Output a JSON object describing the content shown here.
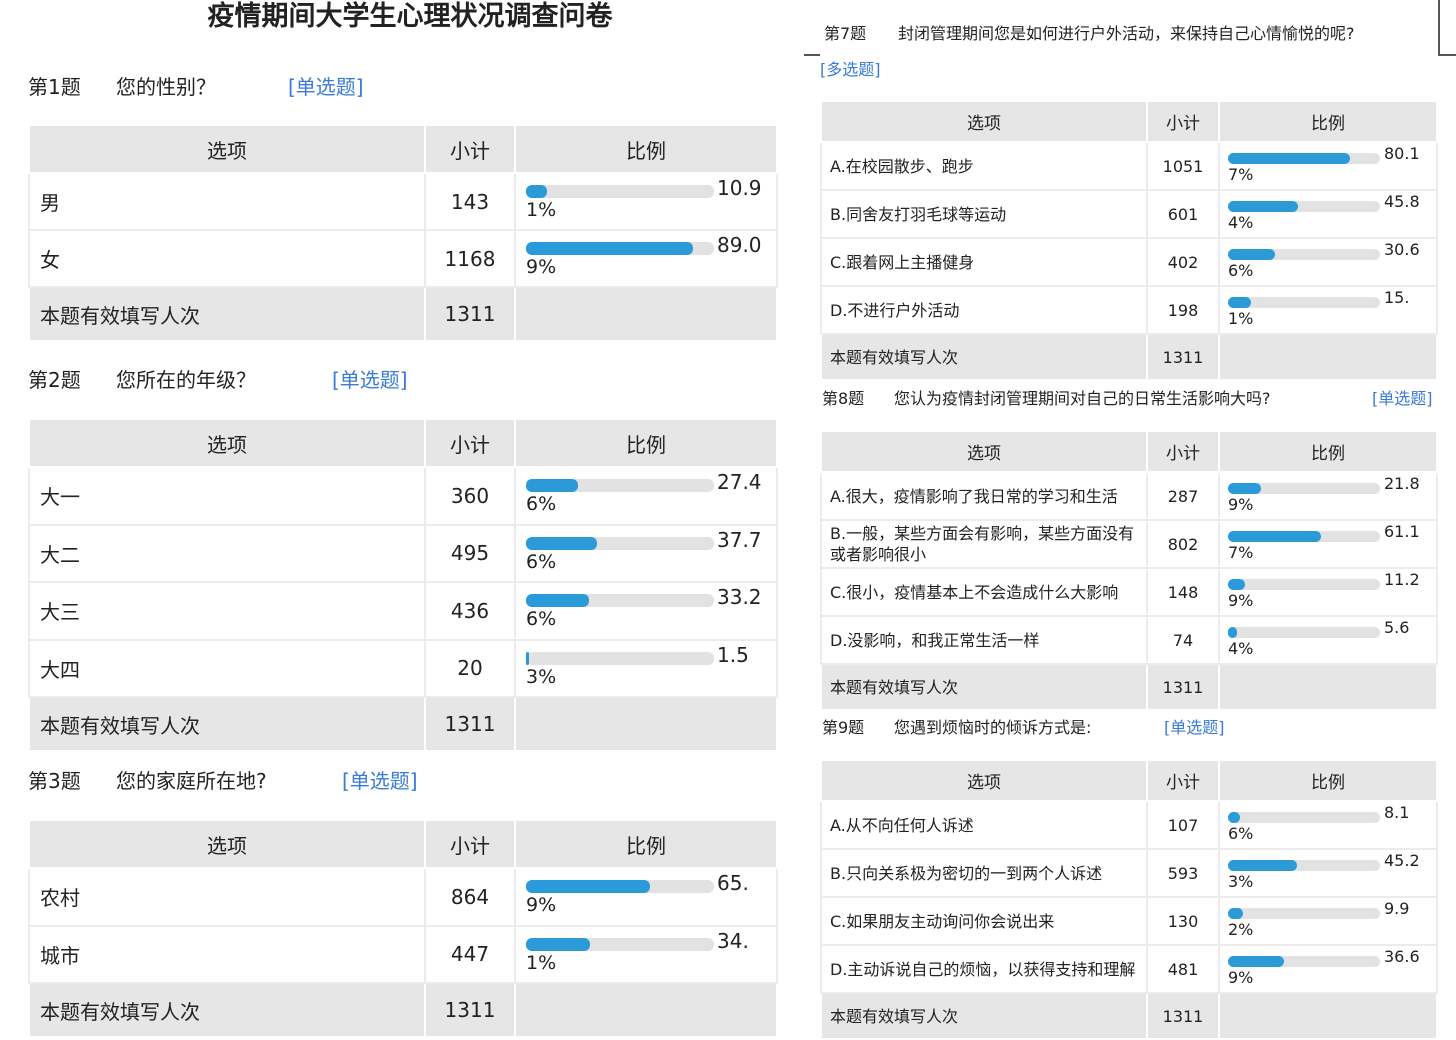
{
  "title": "疫情期间大学生心理状况调查问卷",
  "headers": {
    "option": "选项",
    "count": "小计",
    "ratio": "比例"
  },
  "total_label": "本题有效填写人次",
  "questions": [
    {
      "num": "第1题",
      "text": "您的性别？",
      "type": "[单选题]",
      "total": "1311",
      "rows": [
        {
          "option": "男",
          "count": "143",
          "pct_a": "10.9",
          "pct_b": "1%",
          "value": 10.91
        },
        {
          "option": "女",
          "count": "1168",
          "pct_a": "89.0",
          "pct_b": "9%",
          "value": 89.09
        }
      ]
    },
    {
      "num": "第2题",
      "text": "您所在的年级？",
      "type": "[单选题]",
      "total": "1311",
      "rows": [
        {
          "option": "大一",
          "count": "360",
          "pct_a": "27.4",
          "pct_b": "6%",
          "value": 27.46
        },
        {
          "option": "大二",
          "count": "495",
          "pct_a": "37.7",
          "pct_b": "6%",
          "value": 37.76
        },
        {
          "option": "大三",
          "count": "436",
          "pct_a": "33.2",
          "pct_b": "6%",
          "value": 33.26
        },
        {
          "option": "大四",
          "count": "20",
          "pct_a": "1.5",
          "pct_b": "3%",
          "value": 1.53
        }
      ]
    },
    {
      "num": "第3题",
      "text": "您的家庭所在地?",
      "type": "[单选题]",
      "total": "1311",
      "rows": [
        {
          "option": "农村",
          "count": "864",
          "pct_a": "65.",
          "pct_b": "9%",
          "value": 65.9
        },
        {
          "option": "城市",
          "count": "447",
          "pct_a": "34.",
          "pct_b": "1%",
          "value": 34.1
        }
      ]
    },
    {
      "num": "第7题",
      "text": "封闭管理期间您是如何进行户外活动，来保持自己心情愉悦的呢?",
      "type": "[多选题]",
      "total": "1311",
      "rows": [
        {
          "option": "A.在校园散步、跑步",
          "count": "1051",
          "pct_a": "80.1",
          "pct_b": "7%",
          "value": 80.17
        },
        {
          "option": "B.同舍友打羽毛球等运动",
          "count": "601",
          "pct_a": "45.8",
          "pct_b": "4%",
          "value": 45.84
        },
        {
          "option": "C.跟着网上主播健身",
          "count": "402",
          "pct_a": "30.6",
          "pct_b": "6%",
          "value": 30.66
        },
        {
          "option": "D.不进行户外活动",
          "count": "198",
          "pct_a": "15.",
          "pct_b": "1%",
          "value": 15.1
        }
      ]
    },
    {
      "num": "第8题",
      "text": "您认为疫情封闭管理期间对自己的日常生活影响大吗?",
      "type": "[单选题]",
      "total": "1311",
      "rows": [
        {
          "option": "A.很大，疫情影响了我日常的学习和生活",
          "count": "287",
          "pct_a": "21.8",
          "pct_b": "9%",
          "value": 21.89
        },
        {
          "option": "B.一般，某些方面会有影响，某些方面没有或者影响很小",
          "count": "802",
          "pct_a": "61.1",
          "pct_b": "7%",
          "value": 61.17
        },
        {
          "option": "C.很小，疫情基本上不会造成什么大影响",
          "count": "148",
          "pct_a": "11.2",
          "pct_b": "9%",
          "value": 11.29
        },
        {
          "option": "D.没影响，和我正常生活一样",
          "count": "74",
          "pct_a": "5.6",
          "pct_b": "4%",
          "value": 5.64
        }
      ]
    },
    {
      "num": "第9题",
      "text": "您遇到烦恼时的倾诉方式是:",
      "type": "[单选题]",
      "total": "1311",
      "rows": [
        {
          "option": "A.从不向任何人诉述",
          "count": "107",
          "pct_a": "8.1",
          "pct_b": "6%",
          "value": 8.16
        },
        {
          "option": "B.只向关系极为密切的一到两个人诉述",
          "count": "593",
          "pct_a": "45.2",
          "pct_b": "3%",
          "value": 45.23
        },
        {
          "option": "C.如果朋友主动询问你会说出来",
          "count": "130",
          "pct_a": "9.9",
          "pct_b": "2%",
          "value": 9.92
        },
        {
          "option": "D.主动诉说自己的烦恼，以获得支持和理解",
          "count": "481",
          "pct_a": "36.6",
          "pct_b": "9%",
          "value": 36.69
        }
      ]
    }
  ],
  "colors": {
    "bar_fill": "#2a9ad8",
    "bar_track": "#e2e2e2",
    "header_bg": "#e6e6e6",
    "question_type": "#3a7bd5"
  }
}
